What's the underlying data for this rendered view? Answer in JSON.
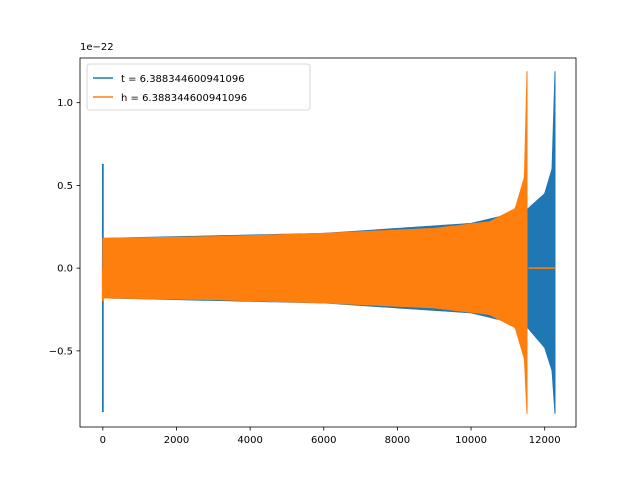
{
  "chart_data": {
    "type": "line",
    "offset_text": "1e−22",
    "xlim": [
      -620,
      12850
    ],
    "ylim": [
      -0.96,
      1.27
    ],
    "x_ticks": [
      0,
      2000,
      4000,
      6000,
      8000,
      10000,
      12000
    ],
    "x_tick_labels": [
      "0",
      "2000",
      "4000",
      "6000",
      "8000",
      "10000",
      "12000"
    ],
    "y_ticks": [
      -0.5,
      0.0,
      0.5,
      1.0
    ],
    "y_tick_labels": [
      "−0.5",
      "0.0",
      "0.5",
      "1.0"
    ],
    "legend_position": "upper-left",
    "grid": false,
    "series": [
      {
        "name": "t = 6.388344600941096",
        "color": "#1f77b4",
        "start_spike": {
          "x": 0,
          "max": 0.63,
          "min": -0.87
        },
        "envelope": [
          {
            "x": 0,
            "upper": 0.18,
            "lower": -0.18
          },
          {
            "x": 6000,
            "upper": 0.21,
            "lower": -0.21
          },
          {
            "x": 10000,
            "upper": 0.27,
            "lower": -0.27
          },
          {
            "x": 11500,
            "upper": 0.35,
            "lower": -0.35
          },
          {
            "x": 12000,
            "upper": 0.45,
            "lower": -0.48
          },
          {
            "x": 12200,
            "upper": 0.6,
            "lower": -0.62
          },
          {
            "x": 12280,
            "upper": 1.19,
            "lower": -0.88
          }
        ],
        "end_x": 12300
      },
      {
        "name": "h = 6.388344600941096",
        "color": "#ff7f0e",
        "start_spike": {
          "x": 0,
          "max": 0.0,
          "min": -0.2
        },
        "envelope": [
          {
            "x": 0,
            "upper": 0.18,
            "lower": -0.18
          },
          {
            "x": 3000,
            "upper": 0.19,
            "lower": -0.19
          },
          {
            "x": 6000,
            "upper": 0.21,
            "lower": -0.21
          },
          {
            "x": 9000,
            "upper": 0.24,
            "lower": -0.24
          },
          {
            "x": 10500,
            "upper": 0.28,
            "lower": -0.28
          },
          {
            "x": 11200,
            "upper": 0.36,
            "lower": -0.36
          },
          {
            "x": 11450,
            "upper": 0.55,
            "lower": -0.55
          },
          {
            "x": 11520,
            "upper": 1.19,
            "lower": -0.88
          }
        ],
        "flat_after": {
          "x_start": 11560,
          "x_end": 12300,
          "y": 0.0
        }
      }
    ]
  }
}
